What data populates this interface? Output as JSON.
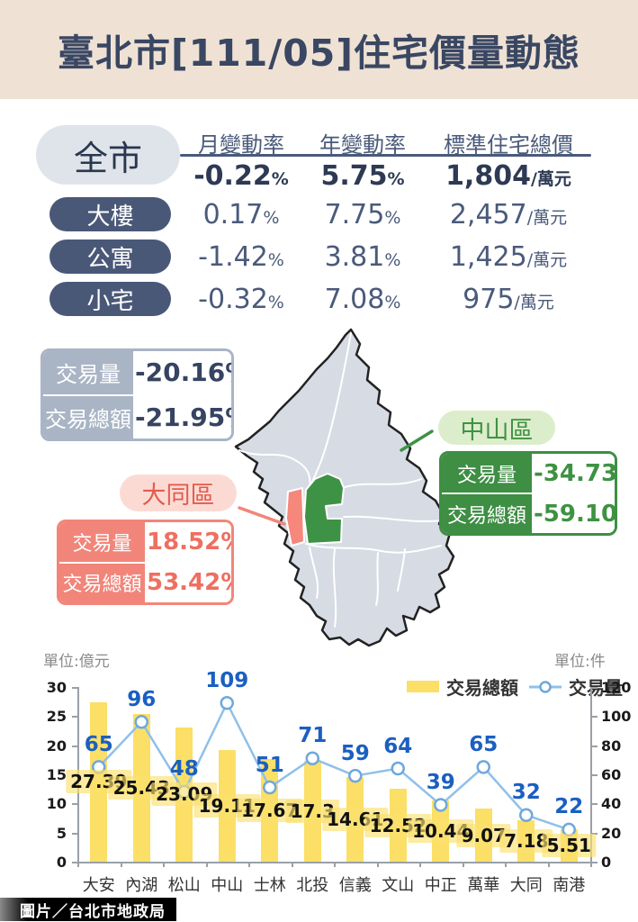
{
  "title": "臺北市[111/05]住宅價量動態",
  "price_table": {
    "scope_label": "全市",
    "columns": {
      "month": "月變動率",
      "year": "年變動率",
      "price": "標準住宅總價"
    },
    "city": {
      "m": "-0.22",
      "mu": "%",
      "y": "5.75",
      "yu": "%",
      "p": "1,804",
      "pu": "/萬元"
    },
    "rows": [
      {
        "label": "大樓",
        "m": "0.17",
        "mu": "%",
        "y": "7.75",
        "yu": "%",
        "p": "2,457",
        "pu": "/萬元"
      },
      {
        "label": "公寓",
        "m": "-1.42",
        "mu": "%",
        "y": "3.81",
        "yu": "%",
        "p": "1,425",
        "pu": "/萬元"
      },
      {
        "label": "小宅",
        "m": "-0.32",
        "mu": "%",
        "y": "7.08",
        "yu": "%",
        "p": "975",
        "pu": "/萬元"
      }
    ]
  },
  "city_summary": {
    "rows": [
      {
        "label": "交易量",
        "value": "-20.16%"
      },
      {
        "label": "交易總額",
        "value": "-21.95%"
      }
    ]
  },
  "datong": {
    "name": "大同區",
    "rows": [
      {
        "label": "交易量",
        "value": "18.52%"
      },
      {
        "label": "交易總額",
        "value": "53.42%"
      }
    ]
  },
  "zhongshan": {
    "name": "中山區",
    "rows": [
      {
        "label": "交易量",
        "value": "-34.73%"
      },
      {
        "label": "交易總額",
        "value": "-59.10%"
      }
    ]
  },
  "credit": "圖片／台北市地政局",
  "colors": {
    "banner_bg": "#EFE2D4",
    "navy": "#4A5878",
    "gray_label": "#A9B5C5",
    "salmon": "#F2857A",
    "pink_bg": "#FCDAD4",
    "red_text": "#E25C4D",
    "green": "#3E8E44",
    "light_green_bg": "#DCEDCC",
    "map_fill": "#D6DBE4",
    "bar_yellow": "#FBDF66",
    "line_blue": "#8FC0EA",
    "marker_stroke": "#6FA8DC",
    "line_label_blue": "#1B5FC1"
  },
  "chart_data": {
    "type": "combo",
    "categories": [
      "大安",
      "內湖",
      "松山",
      "中山",
      "士林",
      "北投",
      "信義",
      "文山",
      "中正",
      "萬華",
      "大同",
      "南港"
    ],
    "series": [
      {
        "name": "交易總額",
        "type": "bar",
        "axis": "left",
        "values": [
          27.39,
          25.43,
          23.09,
          19.11,
          17.67,
          17.3,
          14.61,
          12.52,
          10.44,
          9.07,
          7.18,
          5.51
        ]
      },
      {
        "name": "交易量",
        "type": "line",
        "axis": "right",
        "values": [
          65,
          96,
          48,
          109,
          51,
          71,
          59,
          64,
          39,
          65,
          32,
          22
        ]
      }
    ],
    "left_axis": {
      "label": "單位:億元",
      "min": 0,
      "max": 30,
      "step": 5
    },
    "right_axis": {
      "label": "單位:件",
      "min": 0,
      "max": 120,
      "step": 20
    },
    "legend_position": "top-right",
    "grid": false
  }
}
